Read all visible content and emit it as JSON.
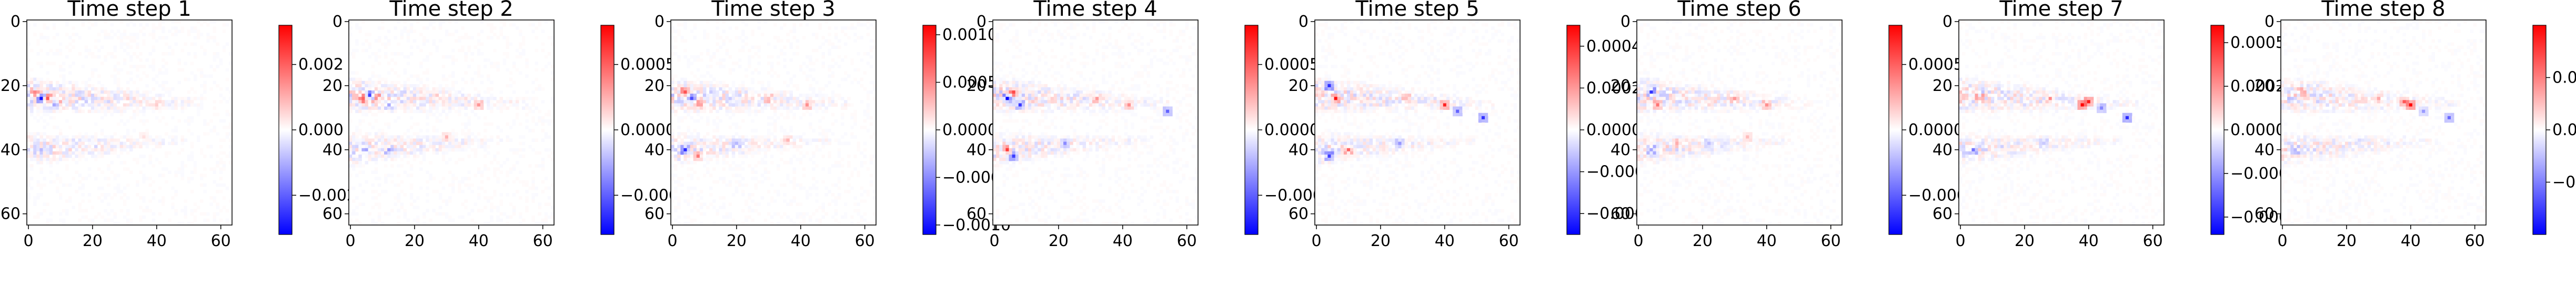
{
  "chart_data": [
    {
      "type": "heatmap",
      "title": "Time step 1",
      "xlim": [
        0,
        63
      ],
      "ylim": [
        0,
        63
      ],
      "x_ticks": [
        "0",
        "20",
        "40",
        "60"
      ],
      "y_ticks": [
        "0",
        "20",
        "40",
        "60"
      ],
      "colormap": "bwr",
      "vmin": -0.0032,
      "vmax": 0.0032,
      "colorbar_ticks": [
        {
          "value": 0.002,
          "label": "0.002"
        },
        {
          "value": 0.0,
          "label": "0.000"
        },
        {
          "value": -0.002,
          "label": "−0.002"
        }
      ],
      "hotspots": [
        {
          "x": 4,
          "y": 24,
          "value": -0.003
        },
        {
          "x": 6,
          "y": 24,
          "value": 0.0025
        },
        {
          "x": 2,
          "y": 22,
          "value": 0.0012
        },
        {
          "x": 8,
          "y": 26,
          "value": -0.0015
        },
        {
          "x": 10,
          "y": 25,
          "value": 0.0006
        },
        {
          "x": 30,
          "y": 24,
          "value": 0.0005
        },
        {
          "x": 40,
          "y": 26,
          "value": 0.0007
        },
        {
          "x": 4,
          "y": 40,
          "value": -0.0008
        },
        {
          "x": 20,
          "y": 38,
          "value": -0.0004
        },
        {
          "x": 36,
          "y": 36,
          "value": 0.0004
        }
      ]
    },
    {
      "type": "heatmap",
      "title": "Time step 2",
      "xlim": [
        0,
        63
      ],
      "ylim": [
        0,
        63
      ],
      "x_ticks": [
        "0",
        "20",
        "40",
        "60"
      ],
      "y_ticks": [
        "0",
        "20",
        "40",
        "60"
      ],
      "colormap": "bwr",
      "vmin": -0.0008,
      "vmax": 0.0008,
      "colorbar_ticks": [
        {
          "value": 0.0005,
          "label": "0.0005"
        },
        {
          "value": 0.0,
          "label": "0.0000"
        },
        {
          "value": -0.0005,
          "label": "−0.0005"
        }
      ],
      "hotspots": [
        {
          "x": 4,
          "y": 24,
          "value": 0.0007
        },
        {
          "x": 6,
          "y": 23,
          "value": -0.0006
        },
        {
          "x": 8,
          "y": 24,
          "value": 0.0005
        },
        {
          "x": 12,
          "y": 26,
          "value": -0.0003
        },
        {
          "x": 28,
          "y": 24,
          "value": 0.0002
        },
        {
          "x": 40,
          "y": 26,
          "value": 0.0003
        },
        {
          "x": 4,
          "y": 40,
          "value": -0.0004
        },
        {
          "x": 12,
          "y": 40,
          "value": -0.0003
        },
        {
          "x": 30,
          "y": 36,
          "value": 0.0002
        }
      ]
    },
    {
      "type": "heatmap",
      "title": "Time step 3",
      "xlim": [
        0,
        63
      ],
      "ylim": [
        0,
        63
      ],
      "x_ticks": [
        "0",
        "20",
        "40",
        "60"
      ],
      "y_ticks": [
        "0",
        "20",
        "40",
        "60"
      ],
      "colormap": "bwr",
      "vmin": -0.0011,
      "vmax": 0.0011,
      "colorbar_ticks": [
        {
          "value": 0.001,
          "label": "0.0010"
        },
        {
          "value": 0.0005,
          "label": "0.0005"
        },
        {
          "value": 0.0,
          "label": "0.0000"
        },
        {
          "value": -0.0005,
          "label": "−0.0005"
        },
        {
          "value": -0.001,
          "label": "−0.0010"
        }
      ],
      "hotspots": [
        {
          "x": 4,
          "y": 22,
          "value": 0.0009
        },
        {
          "x": 6,
          "y": 24,
          "value": -0.0008
        },
        {
          "x": 8,
          "y": 26,
          "value": 0.0006
        },
        {
          "x": 4,
          "y": 40,
          "value": -0.0009
        },
        {
          "x": 8,
          "y": 42,
          "value": 0.0005
        },
        {
          "x": 30,
          "y": 24,
          "value": 0.0004
        },
        {
          "x": 42,
          "y": 26,
          "value": 0.0005
        },
        {
          "x": 20,
          "y": 38,
          "value": -0.0003
        },
        {
          "x": 36,
          "y": 37,
          "value": 0.0003
        }
      ]
    },
    {
      "type": "heatmap",
      "title": "Time step 4",
      "xlim": [
        0,
        63
      ],
      "ylim": [
        0,
        63
      ],
      "x_ticks": [
        "0",
        "20",
        "40",
        "60"
      ],
      "y_ticks": [
        "0",
        "20",
        "40",
        "60"
      ],
      "colormap": "bwr",
      "vmin": -0.0008,
      "vmax": 0.0008,
      "colorbar_ticks": [
        {
          "value": 0.0005,
          "label": "0.0005"
        },
        {
          "value": 0.0,
          "label": "0.0000"
        },
        {
          "value": -0.0005,
          "label": "−0.0005"
        }
      ],
      "hotspots": [
        {
          "x": 4,
          "y": 24,
          "value": -0.0007
        },
        {
          "x": 6,
          "y": 22,
          "value": 0.0006
        },
        {
          "x": 8,
          "y": 26,
          "value": -0.0005
        },
        {
          "x": 4,
          "y": 40,
          "value": 0.0005
        },
        {
          "x": 6,
          "y": 42,
          "value": -0.0006
        },
        {
          "x": 32,
          "y": 24,
          "value": 0.0003
        },
        {
          "x": 42,
          "y": 26,
          "value": 0.0004
        },
        {
          "x": 54,
          "y": 28,
          "value": -0.0005
        },
        {
          "x": 22,
          "y": 38,
          "value": -0.0003
        }
      ]
    },
    {
      "type": "heatmap",
      "title": "Time step 5",
      "xlim": [
        0,
        63
      ],
      "ylim": [
        0,
        63
      ],
      "x_ticks": [
        "0",
        "20",
        "40",
        "60"
      ],
      "y_ticks": [
        "0",
        "20",
        "40",
        "60"
      ],
      "colormap": "bwr",
      "vmin": -0.0005,
      "vmax": 0.0005,
      "colorbar_ticks": [
        {
          "value": 0.0004,
          "label": "0.0004"
        },
        {
          "value": 0.0002,
          "label": "0.0002"
        },
        {
          "value": 0.0,
          "label": "0.0000"
        },
        {
          "value": -0.0002,
          "label": "−0.0002"
        },
        {
          "value": -0.0004,
          "label": "−0.0004"
        }
      ],
      "hotspots": [
        {
          "x": 4,
          "y": 20,
          "value": -0.0004
        },
        {
          "x": 6,
          "y": 24,
          "value": 0.0004
        },
        {
          "x": 4,
          "y": 42,
          "value": -0.0004
        },
        {
          "x": 10,
          "y": 40,
          "value": 0.0003
        },
        {
          "x": 40,
          "y": 26,
          "value": 0.0004
        },
        {
          "x": 44,
          "y": 28,
          "value": -0.0003
        },
        {
          "x": 52,
          "y": 30,
          "value": -0.0004
        },
        {
          "x": 28,
          "y": 24,
          "value": 0.0002
        },
        {
          "x": 26,
          "y": 38,
          "value": -0.0002
        }
      ]
    },
    {
      "type": "heatmap",
      "title": "Time step 6",
      "xlim": [
        0,
        63
      ],
      "ylim": [
        0,
        63
      ],
      "x_ticks": [
        "0",
        "20",
        "40",
        "60"
      ],
      "y_ticks": [
        "0",
        "20",
        "40",
        "60"
      ],
      "colormap": "bwr",
      "vmin": -0.0008,
      "vmax": 0.0008,
      "colorbar_ticks": [
        {
          "value": 0.0005,
          "label": "0.0005"
        },
        {
          "value": 0.0,
          "label": "0.0000"
        },
        {
          "value": -0.0005,
          "label": "−0.0005"
        }
      ],
      "hotspots": [
        {
          "x": 4,
          "y": 22,
          "value": -0.0005
        },
        {
          "x": 6,
          "y": 26,
          "value": 0.0004
        },
        {
          "x": 4,
          "y": 40,
          "value": -0.0004
        },
        {
          "x": 12,
          "y": 38,
          "value": 0.0003
        },
        {
          "x": 40,
          "y": 26,
          "value": 0.0004
        },
        {
          "x": 30,
          "y": 24,
          "value": 0.0003
        },
        {
          "x": 22,
          "y": 38,
          "value": -0.0002
        },
        {
          "x": 34,
          "y": 36,
          "value": 0.0002
        }
      ]
    },
    {
      "type": "heatmap",
      "title": "Time step 7",
      "xlim": [
        0,
        63
      ],
      "ylim": [
        0,
        63
      ],
      "x_ticks": [
        "0",
        "20",
        "40",
        "60"
      ],
      "y_ticks": [
        "0",
        "20",
        "40",
        "60"
      ],
      "colormap": "bwr",
      "vmin": -0.0006,
      "vmax": 0.0006,
      "colorbar_ticks": [
        {
          "value": 0.0005,
          "label": "0.00050"
        },
        {
          "value": 0.00025,
          "label": "0.00025"
        },
        {
          "value": 0.0,
          "label": "0.00000"
        },
        {
          "value": -0.00025,
          "label": "−0.00025"
        },
        {
          "value": -0.0005,
          "label": "−0.00050"
        }
      ],
      "hotspots": [
        {
          "x": 38,
          "y": 26,
          "value": 0.0006
        },
        {
          "x": 40,
          "y": 25,
          "value": 0.0005
        },
        {
          "x": 44,
          "y": 27,
          "value": -0.0003
        },
        {
          "x": 52,
          "y": 30,
          "value": -0.0005
        },
        {
          "x": 6,
          "y": 24,
          "value": 0.0003
        },
        {
          "x": 4,
          "y": 40,
          "value": -0.0003
        },
        {
          "x": 28,
          "y": 24,
          "value": 0.0002
        },
        {
          "x": 26,
          "y": 38,
          "value": -0.0002
        }
      ]
    },
    {
      "type": "heatmap",
      "title": "Time step 8",
      "xlim": [
        0,
        63
      ],
      "ylim": [
        0,
        63
      ],
      "x_ticks": [
        "0",
        "20",
        "40",
        "60"
      ],
      "y_ticks": [
        "0",
        "20",
        "40",
        "60"
      ],
      "colormap": "bwr",
      "vmin": -0.001,
      "vmax": 0.001,
      "colorbar_ticks": [
        {
          "value": 0.0005,
          "label": "0.0005"
        },
        {
          "value": 0.0,
          "label": "0.0000"
        },
        {
          "value": -0.0005,
          "label": "−0.0005"
        }
      ],
      "hotspots": [
        {
          "x": 40,
          "y": 26,
          "value": 0.0009
        },
        {
          "x": 38,
          "y": 25,
          "value": 0.0006
        },
        {
          "x": 44,
          "y": 28,
          "value": -0.0004
        },
        {
          "x": 52,
          "y": 30,
          "value": -0.0006
        },
        {
          "x": 6,
          "y": 22,
          "value": 0.0004
        },
        {
          "x": 4,
          "y": 40,
          "value": -0.0004
        },
        {
          "x": 30,
          "y": 24,
          "value": 0.0003
        },
        {
          "x": 24,
          "y": 38,
          "value": -0.0002
        }
      ]
    }
  ]
}
